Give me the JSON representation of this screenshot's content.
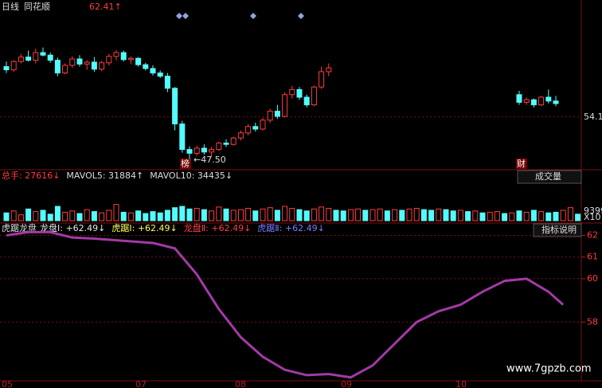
{
  "header": {
    "period": "日线",
    "brand": "同花顺",
    "high": "62.41↑"
  },
  "price_panel": {
    "type": "candlestick",
    "ohlc": [
      [
        62,
        62.8,
        61,
        61.5
      ],
      [
        61.5,
        63,
        61.2,
        62.8
      ],
      [
        62.8,
        64,
        62.5,
        63.5
      ],
      [
        63.5,
        64.5,
        62.8,
        63
      ],
      [
        63,
        64.8,
        62.5,
        64.2
      ],
      [
        64.2,
        65,
        63.6,
        63.8
      ],
      [
        63.8,
        64.2,
        62.6,
        63
      ],
      [
        63,
        63.4,
        60.5,
        61
      ],
      [
        61,
        62.5,
        60.8,
        62.2
      ],
      [
        62.2,
        63.6,
        61.8,
        63.2
      ],
      [
        63.2,
        63.8,
        62,
        62.4
      ],
      [
        62.4,
        63,
        61.5,
        62.7
      ],
      [
        62.7,
        63.5,
        61.2,
        61.6
      ],
      [
        61.6,
        62.9,
        61.3,
        62.6
      ],
      [
        62.6,
        64,
        62.2,
        63.6
      ],
      [
        63.6,
        64.6,
        63,
        64.2
      ],
      [
        64.2,
        64.5,
        62.8,
        63.1
      ],
      [
        63.1,
        63.6,
        62.4,
        63.3
      ],
      [
        63.3,
        63.5,
        62,
        62.3
      ],
      [
        62.3,
        62.6,
        61.4,
        61.7
      ],
      [
        61.7,
        62.2,
        60.6,
        61
      ],
      [
        61,
        61.4,
        60.2,
        60.5
      ],
      [
        60.5,
        61,
        58,
        58.6
      ],
      [
        58.6,
        58.8,
        52,
        53
      ],
      [
        53,
        53.5,
        48.5,
        49
      ],
      [
        49,
        49.5,
        47.5,
        48.4
      ],
      [
        48.4,
        49.6,
        48,
        49.2
      ],
      [
        49.2,
        49.8,
        48.2,
        48.6
      ],
      [
        48.6,
        49.4,
        47.8,
        49
      ],
      [
        49,
        50.2,
        48.8,
        50
      ],
      [
        50,
        50.6,
        49.4,
        49.8
      ],
      [
        49.8,
        51,
        49.6,
        50.8
      ],
      [
        50.8,
        52,
        50.4,
        51.6
      ],
      [
        51.6,
        53,
        51.2,
        52.6
      ],
      [
        52.6,
        53.2,
        51.8,
        52.2
      ],
      [
        52.2,
        54,
        52,
        53.6
      ],
      [
        53.6,
        55.4,
        53.2,
        55
      ],
      [
        55,
        56,
        53.8,
        54.2
      ],
      [
        54.2,
        58,
        54,
        57.6
      ],
      [
        57.6,
        59,
        57,
        58.4
      ],
      [
        58.4,
        58.8,
        56.8,
        57.2
      ],
      [
        57.2,
        57.6,
        55.6,
        56
      ],
      [
        56,
        59,
        55.8,
        58.8
      ],
      [
        58.8,
        62,
        58.5,
        61.2
      ],
      [
        61.2,
        62.5,
        60.5,
        61.8
      ],
      null,
      null,
      null,
      null,
      null,
      null,
      null,
      null,
      null,
      null,
      null,
      null,
      null,
      null,
      null,
      null,
      null,
      null,
      null,
      null,
      null,
      null,
      null,
      null,
      null,
      [
        57.6,
        58.2,
        56,
        56.4
      ],
      [
        56.4,
        57.2,
        56,
        56.8
      ],
      [
        56.8,
        57,
        55.6,
        56
      ],
      [
        56,
        57.4,
        55.8,
        57.2
      ],
      [
        57.2,
        58.4,
        56.2,
        56.6
      ],
      [
        56.6,
        57.4,
        55.8,
        56.2
      ]
    ],
    "ylim": [
      46.2,
      71.2
    ],
    "yticks": [
      54.1
    ],
    "up_color": "#ff3c3c",
    "down_color": "#54fcfc",
    "low_label": "←47.50",
    "tag_left": "榜",
    "tag_right": "财"
  },
  "volume_panel": {
    "type": "bar",
    "header": [
      "总手: 27616↓",
      "MAVOL5: 31884↑",
      "MAVOL10: 34435↓"
    ],
    "button": "成交量",
    "axis_labels": [
      "9399",
      "X10"
    ],
    "values": [
      12000,
      15000,
      9000,
      18000,
      14000,
      16000,
      10000,
      22000,
      13000,
      15000,
      11000,
      17000,
      14000,
      12000,
      16000,
      25000,
      13000,
      12000,
      15000,
      11000,
      14000,
      12000,
      16000,
      20000,
      22000,
      18000,
      19000,
      17000,
      15000,
      21000,
      18000,
      16000,
      17000,
      19000,
      15000,
      18000,
      20000,
      16000,
      22000,
      19000,
      17000,
      15000,
      18000,
      21000,
      19000,
      16000,
      15000,
      17000,
      18000,
      16000,
      17000,
      18000,
      15000,
      17000,
      16000,
      18000,
      19000,
      17000,
      16000,
      18000,
      17000,
      15000,
      16000,
      14000,
      15000,
      12000,
      13000,
      14000,
      11000,
      12000,
      15000,
      13000,
      16000,
      14000,
      12000,
      13000,
      16000,
      20000,
      10000
    ],
    "ylim": [
      0,
      60000
    ]
  },
  "indicator_panel": {
    "type": "line",
    "name": "虎踞龙盘",
    "legend": [
      "龙盘Ⅰ: +62.49↓",
      "虎踞Ⅰ: +62.49↓",
      "龙盘Ⅱ: +62.49↓",
      "虎踞Ⅱ: +62.49↓"
    ],
    "legend_colors": [
      "#e6e6e6",
      "#ffff55",
      "#ff4040",
      "#7a7aff"
    ],
    "button": "指标说明",
    "color": "#a23aa6",
    "x": [
      0,
      3,
      6,
      9,
      12,
      16,
      20,
      23,
      26,
      29,
      32,
      35,
      38,
      41,
      44,
      47,
      50,
      53,
      56,
      59,
      62,
      65,
      68,
      71,
      74,
      76
    ],
    "values": [
      62.0,
      62.15,
      62.15,
      61.9,
      61.85,
      61.75,
      61.65,
      61.4,
      60.2,
      58.6,
      57.3,
      56.4,
      55.8,
      55.55,
      55.6,
      55.45,
      56,
      57,
      58,
      58.5,
      58.8,
      59.4,
      59.9,
      60.0,
      59.4,
      58.8
    ],
    "ylim": [
      55.4,
      62.2
    ],
    "yticks": [
      62,
      61,
      60,
      58
    ]
  },
  "date_axis": [
    "05",
    "07",
    "08",
    "09",
    "10"
  ],
  "watermark": "www.7gpzb.com"
}
